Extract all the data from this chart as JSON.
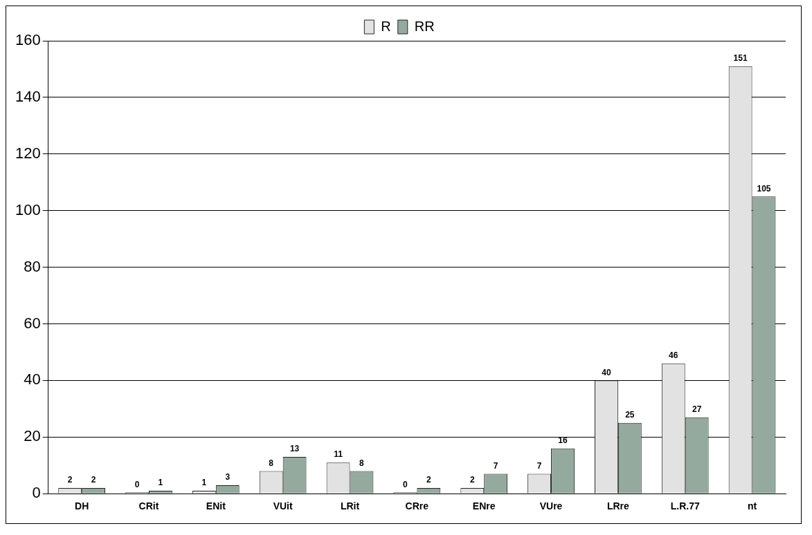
{
  "chart_data": {
    "type": "bar",
    "categories": [
      "DH",
      "CRit",
      "ENit",
      "VUit",
      "LRit",
      "CRre",
      "ENre",
      "VUre",
      "LRre",
      "L.R.77",
      "nt"
    ],
    "series": [
      {
        "name": "R",
        "color": "#e2e2e2",
        "values": [
          2,
          0,
          1,
          8,
          11,
          0,
          2,
          7,
          40,
          46,
          151
        ]
      },
      {
        "name": "RR",
        "color": "#95aa9e",
        "values": [
          2,
          1,
          3,
          13,
          8,
          2,
          7,
          16,
          25,
          27,
          105
        ]
      }
    ],
    "ylim": [
      0,
      160
    ],
    "yticks": [
      0,
      20,
      40,
      60,
      80,
      100,
      120,
      140,
      160
    ],
    "grid": "y",
    "legend": "top",
    "data_labels": true
  }
}
